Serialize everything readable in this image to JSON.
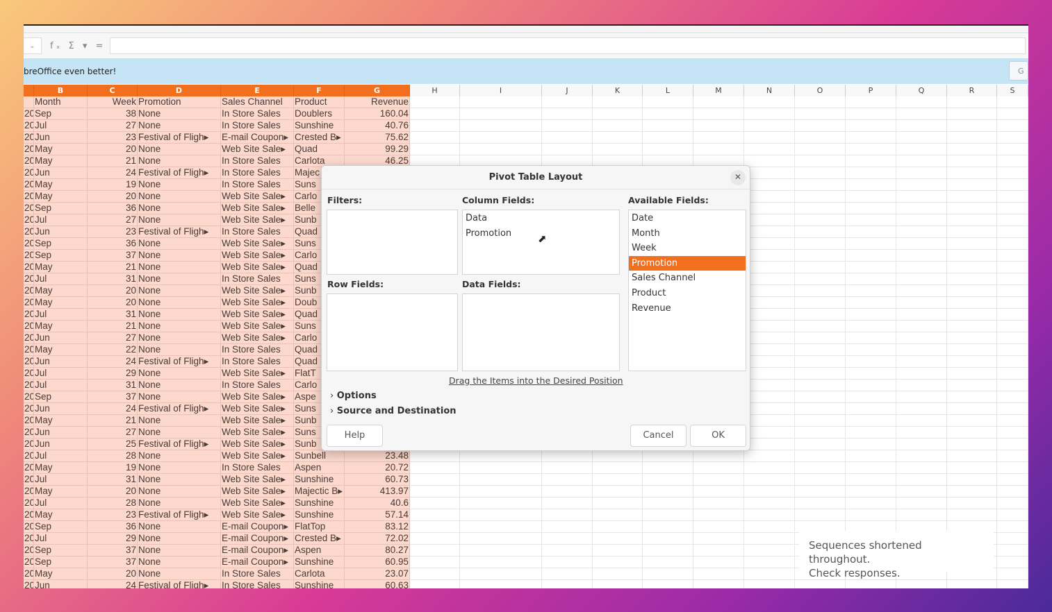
{
  "infobar": {
    "message": "breOffice even better!",
    "button": "G"
  },
  "formula": {
    "icons": "fₓ Σ ▾ ="
  },
  "columns": [
    "",
    "B",
    "C",
    "D",
    "E",
    "F",
    "G",
    "H",
    "I",
    "J",
    "K",
    "L",
    "M",
    "N",
    "O",
    "P",
    "Q",
    "R",
    "S"
  ],
  "selected_columns": [
    "B",
    "C",
    "D",
    "E",
    "F",
    "G"
  ],
  "header_row": [
    "",
    "Month",
    "Week",
    "Promotion",
    "Sales Channel",
    "Product",
    "Revenue"
  ],
  "rows": [
    [
      "20",
      "Sep",
      "38",
      "None",
      "In Store Sales",
      "Doublers",
      "160.04"
    ],
    [
      "20",
      "Jul",
      "27",
      "None",
      "In Store Sales",
      "Sunshine",
      "40.76"
    ],
    [
      "20",
      "Jun",
      "23",
      "Festival of Fligh▸",
      "E-mail Coupon▸",
      "Crested B▸",
      "75.62"
    ],
    [
      "20",
      "May",
      "20",
      "None",
      "Web Site Sale▸",
      "Quad",
      "99.29"
    ],
    [
      "20",
      "May",
      "21",
      "None",
      "In Store Sales",
      "Carlota",
      "46.25"
    ],
    [
      "20",
      "Jun",
      "24",
      "Festival of Fligh▸",
      "In Store Sales",
      "Majec",
      ""
    ],
    [
      "20",
      "May",
      "19",
      "None",
      "In Store Sales",
      "Suns",
      ""
    ],
    [
      "20",
      "May",
      "20",
      "None",
      "Web Site Sale▸",
      "Carlo",
      ""
    ],
    [
      "20",
      "Sep",
      "36",
      "None",
      "Web Site Sale▸",
      "Belle",
      ""
    ],
    [
      "20",
      "Jul",
      "27",
      "None",
      "Web Site Sale▸",
      "Sunb",
      ""
    ],
    [
      "20",
      "Jun",
      "23",
      "Festival of Fligh▸",
      "In Store Sales",
      "Quad",
      ""
    ],
    [
      "20",
      "Sep",
      "36",
      "None",
      "Web Site Sale▸",
      "Suns",
      ""
    ],
    [
      "20",
      "Sep",
      "37",
      "None",
      "Web Site Sale▸",
      "Carlo",
      ""
    ],
    [
      "20",
      "May",
      "21",
      "None",
      "Web Site Sale▸",
      "Quad",
      ""
    ],
    [
      "20",
      "Jul",
      "31",
      "None",
      "In Store Sales",
      "Suns",
      ""
    ],
    [
      "20",
      "May",
      "20",
      "None",
      "Web Site Sale▸",
      "Sunb",
      ""
    ],
    [
      "20",
      "May",
      "20",
      "None",
      "Web Site Sale▸",
      "Doub",
      ""
    ],
    [
      "20",
      "Jul",
      "31",
      "None",
      "Web Site Sale▸",
      "Quad",
      ""
    ],
    [
      "20",
      "May",
      "21",
      "None",
      "Web Site Sale▸",
      "Suns",
      ""
    ],
    [
      "20",
      "Jun",
      "27",
      "None",
      "Web Site Sale▸",
      "Carlo",
      ""
    ],
    [
      "20",
      "May",
      "22",
      "None",
      "In Store Sales",
      "Quad",
      ""
    ],
    [
      "20",
      "Jun",
      "24",
      "Festival of Fligh▸",
      "In Store Sales",
      "Quad",
      ""
    ],
    [
      "20",
      "Jul",
      "29",
      "None",
      "Web Site Sale▸",
      "FlatT",
      ""
    ],
    [
      "20",
      "Jul",
      "31",
      "None",
      "In Store Sales",
      "Carlo",
      ""
    ],
    [
      "20",
      "Sep",
      "37",
      "None",
      "Web Site Sale▸",
      "Aspe",
      ""
    ],
    [
      "20",
      "Jun",
      "24",
      "Festival of Fligh▸",
      "Web Site Sale▸",
      "Suns",
      ""
    ],
    [
      "20",
      "May",
      "21",
      "None",
      "Web Site Sale▸",
      "Sunb",
      ""
    ],
    [
      "20",
      "Jun",
      "27",
      "None",
      "Web Site Sale▸",
      "Suns",
      ""
    ],
    [
      "20",
      "Jun",
      "25",
      "Festival of Fligh▸",
      "Web Site Sale▸",
      "Sunb",
      ""
    ],
    [
      "20",
      "Jul",
      "28",
      "None",
      "Web Site Sale▸",
      "Sunbell",
      "23.48"
    ],
    [
      "20",
      "May",
      "19",
      "None",
      "In Store Sales",
      "Aspen",
      "20.72"
    ],
    [
      "20",
      "Jul",
      "31",
      "None",
      "Web Site Sale▸",
      "Sunshine",
      "60.73"
    ],
    [
      "20",
      "May",
      "20",
      "None",
      "Web Site Sale▸",
      "Majectic B▸",
      "413.97"
    ],
    [
      "20",
      "Jul",
      "28",
      "None",
      "Web Site Sale▸",
      "Sunshine",
      "40.6"
    ],
    [
      "20",
      "May",
      "23",
      "Festival of Fligh▸",
      "Web Site Sale▸",
      "Sunshine",
      "57.14"
    ],
    [
      "20",
      "Sep",
      "36",
      "None",
      "E-mail Coupon▸",
      "FlatTop",
      "83.12"
    ],
    [
      "20",
      "Jul",
      "29",
      "None",
      "E-mail Coupon▸",
      "Crested B▸",
      "72.02"
    ],
    [
      "20",
      "Sep",
      "37",
      "None",
      "E-mail Coupon▸",
      "Aspen",
      "80.27"
    ],
    [
      "20",
      "Sep",
      "37",
      "None",
      "E-mail Coupon▸",
      "Sunshine",
      "60.95"
    ],
    [
      "20",
      "May",
      "20",
      "None",
      "In Store Sales",
      "Carlota",
      "23.07"
    ],
    [
      "20",
      "Jun",
      "24",
      "Festival of Fligh▸",
      "In Store Sales",
      "Sunshine",
      "60.63"
    ]
  ],
  "dialog": {
    "title": "Pivot Table Layout",
    "filters_label": "Filters:",
    "column_fields_label": "Column Fields:",
    "column_fields": [
      "Data",
      "Promotion"
    ],
    "row_fields_label": "Row Fields:",
    "data_fields_label": "Data Fields:",
    "available_fields_label": "Available Fields:",
    "available_fields": [
      "Date",
      "Month",
      "Week",
      "Promotion",
      "Sales Channel",
      "Product",
      "Revenue"
    ],
    "selected_available": "Promotion",
    "hint": "Drag the Items into the Desired Position",
    "options": "Options",
    "source_destination": "Source and Destination",
    "help": "Help",
    "cancel": "Cancel",
    "ok": "OK"
  },
  "toast": {
    "line1": "Sequences shortened throughout.",
    "line2": "Check responses."
  },
  "colors": {
    "accent": "#f26f1e",
    "selection": "#fcd9cc",
    "infobar": "#c5e4f6"
  }
}
